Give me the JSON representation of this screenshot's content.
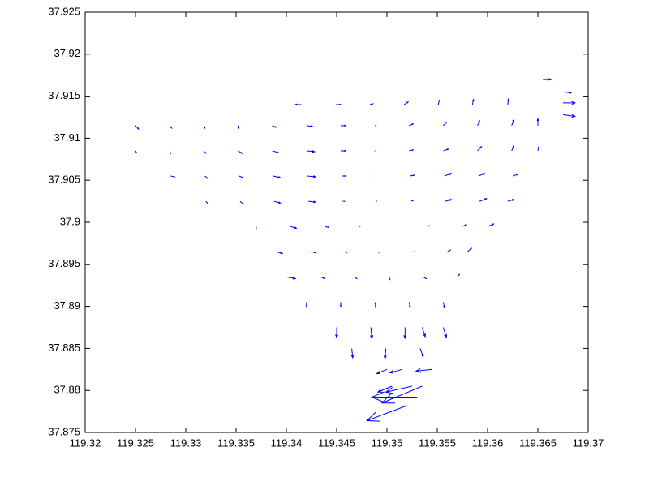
{
  "chart_data": {
    "type": "quiver",
    "color": "#0000ff",
    "xlim": [
      119.32,
      119.37
    ],
    "ylim": [
      37.875,
      37.925
    ],
    "xticks": [
      119.32,
      119.325,
      119.33,
      119.335,
      119.34,
      119.345,
      119.35,
      119.355,
      119.36,
      119.365,
      119.37
    ],
    "yticks": [
      37.875,
      37.88,
      37.885,
      37.89,
      37.895,
      37.9,
      37.905,
      37.91,
      37.915,
      37.92,
      37.925
    ],
    "arrows": [
      {
        "x": 119.3415,
        "y": 37.914,
        "u": -0.0006,
        "v": 0
      },
      {
        "x": 119.3449,
        "y": 37.914,
        "u": 0.0005,
        "v": 0
      },
      {
        "x": 119.3483,
        "y": 37.914,
        "u": 0.0003,
        "v": 0.0001
      },
      {
        "x": 119.3517,
        "y": 37.914,
        "u": 0.0004,
        "v": 0.0003
      },
      {
        "x": 119.3551,
        "y": 37.914,
        "u": 0.0001,
        "v": 0.0005
      },
      {
        "x": 119.3585,
        "y": 37.914,
        "u": 0.0001,
        "v": 0.0006
      },
      {
        "x": 119.362,
        "y": 37.914,
        "u": 0.0001,
        "v": 0.0007
      },
      {
        "x": 119.3655,
        "y": 37.917,
        "u": 0.0008,
        "v": 0
      },
      {
        "x": 119.3675,
        "y": 37.9155,
        "u": 0.0008,
        "v": -0.0001
      },
      {
        "x": 119.3675,
        "y": 37.9142,
        "u": 0.0012,
        "v": 0
      },
      {
        "x": 119.3675,
        "y": 37.9128,
        "u": 0.0012,
        "v": -0.0002
      },
      {
        "x": 119.325,
        "y": 37.9115,
        "u": 0.0003,
        "v": -0.0004
      },
      {
        "x": 119.3284,
        "y": 37.9115,
        "u": 0.0002,
        "v": -0.0003
      },
      {
        "x": 119.3318,
        "y": 37.9115,
        "u": 0.0001,
        "v": -0.0003
      },
      {
        "x": 119.3352,
        "y": 37.9115,
        "u": 0,
        "v": -0.0003
      },
      {
        "x": 119.3386,
        "y": 37.9115,
        "u": 0.0004,
        "v": -0.0002
      },
      {
        "x": 119.342,
        "y": 37.9115,
        "u": 0.0006,
        "v": -0.0001
      },
      {
        "x": 119.3454,
        "y": 37.9115,
        "u": 0.0005,
        "v": 0
      },
      {
        "x": 119.3488,
        "y": 37.9115,
        "u": 0.0001,
        "v": 0
      },
      {
        "x": 119.3522,
        "y": 37.9115,
        "u": 0.0004,
        "v": 0.0002
      },
      {
        "x": 119.3556,
        "y": 37.9115,
        "u": 0.0003,
        "v": 0.0004
      },
      {
        "x": 119.359,
        "y": 37.9115,
        "u": 0.0002,
        "v": 0.0006
      },
      {
        "x": 119.3624,
        "y": 37.9115,
        "u": 0.0002,
        "v": 0.0007
      },
      {
        "x": 119.365,
        "y": 37.9115,
        "u": 0,
        "v": 0.0008
      },
      {
        "x": 119.325,
        "y": 37.9085,
        "u": 0.0001,
        "v": -0.0002
      },
      {
        "x": 119.3284,
        "y": 37.9085,
        "u": 0.0001,
        "v": -0.0003
      },
      {
        "x": 119.3318,
        "y": 37.9085,
        "u": 0.0002,
        "v": -0.0003
      },
      {
        "x": 119.3352,
        "y": 37.9085,
        "u": 0.0004,
        "v": -0.0003
      },
      {
        "x": 119.3386,
        "y": 37.9085,
        "u": 0.0006,
        "v": -0.0002
      },
      {
        "x": 119.342,
        "y": 37.9085,
        "u": 0.0008,
        "v": -0.0001
      },
      {
        "x": 119.3454,
        "y": 37.9085,
        "u": 0.0005,
        "v": 0
      },
      {
        "x": 119.3488,
        "y": 37.9085,
        "u": 0,
        "v": 0
      },
      {
        "x": 119.3522,
        "y": 37.9085,
        "u": 0.0004,
        "v": 0.0001
      },
      {
        "x": 119.3556,
        "y": 37.9085,
        "u": 0.0005,
        "v": 0.0002
      },
      {
        "x": 119.359,
        "y": 37.9085,
        "u": 0.0004,
        "v": 0.0005
      },
      {
        "x": 119.3624,
        "y": 37.9085,
        "u": 0.0002,
        "v": 0.0006
      },
      {
        "x": 119.365,
        "y": 37.9085,
        "u": 0.0001,
        "v": 0.0005
      },
      {
        "x": 119.3285,
        "y": 37.9055,
        "u": 0.0004,
        "v": -0.0001
      },
      {
        "x": 119.3319,
        "y": 37.9055,
        "u": 0.0003,
        "v": -0.0003
      },
      {
        "x": 119.3353,
        "y": 37.9055,
        "u": 0.0004,
        "v": -0.0002
      },
      {
        "x": 119.3387,
        "y": 37.9055,
        "u": 0.0007,
        "v": -0.0002
      },
      {
        "x": 119.3421,
        "y": 37.9055,
        "u": 0.0008,
        "v": -0.0001
      },
      {
        "x": 119.3455,
        "y": 37.9055,
        "u": 0.0004,
        "v": 0
      },
      {
        "x": 119.3489,
        "y": 37.9055,
        "u": 0,
        "v": 0
      },
      {
        "x": 119.3523,
        "y": 37.9055,
        "u": 0.0004,
        "v": 0.0001
      },
      {
        "x": 119.3557,
        "y": 37.9055,
        "u": 0.0007,
        "v": 0.0003
      },
      {
        "x": 119.3591,
        "y": 37.9055,
        "u": 0.0006,
        "v": 0.0003
      },
      {
        "x": 119.3625,
        "y": 37.9055,
        "u": 0.0005,
        "v": 0.0002
      },
      {
        "x": 119.332,
        "y": 37.9025,
        "u": 0.0002,
        "v": -0.0003
      },
      {
        "x": 119.3354,
        "y": 37.9025,
        "u": 0.0003,
        "v": -0.0003
      },
      {
        "x": 119.3388,
        "y": 37.9025,
        "u": 0.0006,
        "v": -0.0002
      },
      {
        "x": 119.3422,
        "y": 37.9025,
        "u": 0.0007,
        "v": -0.0001
      },
      {
        "x": 119.3456,
        "y": 37.9025,
        "u": 0.0002,
        "v": 0
      },
      {
        "x": 119.349,
        "y": 37.9025,
        "u": 0,
        "v": 0
      },
      {
        "x": 119.3524,
        "y": 37.9025,
        "u": 0.0002,
        "v": 0.0001
      },
      {
        "x": 119.3558,
        "y": 37.9025,
        "u": 0.0006,
        "v": 0.0002
      },
      {
        "x": 119.3592,
        "y": 37.9025,
        "u": 0.0007,
        "v": 0.0003
      },
      {
        "x": 119.362,
        "y": 37.9025,
        "u": 0.0006,
        "v": 0.0002
      },
      {
        "x": 119.337,
        "y": 37.8995,
        "u": 0,
        "v": -0.0003
      },
      {
        "x": 119.3404,
        "y": 37.8995,
        "u": 0.0006,
        "v": -0.0002
      },
      {
        "x": 119.3438,
        "y": 37.8995,
        "u": 0.0004,
        "v": -0.0001
      },
      {
        "x": 119.3472,
        "y": 37.8995,
        "u": 0.0001,
        "v": 0
      },
      {
        "x": 119.3506,
        "y": 37.8995,
        "u": 0,
        "v": 0
      },
      {
        "x": 119.354,
        "y": 37.8995,
        "u": 0.0002,
        "v": 0.0001
      },
      {
        "x": 119.3574,
        "y": 37.8995,
        "u": 0.0005,
        "v": 0.0002
      },
      {
        "x": 119.36,
        "y": 37.8995,
        "u": 0.0006,
        "v": 0.0003
      },
      {
        "x": 119.339,
        "y": 37.8965,
        "u": 0.0006,
        "v": -0.0002
      },
      {
        "x": 119.3424,
        "y": 37.8965,
        "u": 0.0005,
        "v": -0.0001
      },
      {
        "x": 119.3458,
        "y": 37.8965,
        "u": 0.0002,
        "v": -0.0001
      },
      {
        "x": 119.3492,
        "y": 37.8965,
        "u": 0,
        "v": -0.0001
      },
      {
        "x": 119.3526,
        "y": 37.8965,
        "u": 0.0002,
        "v": 0
      },
      {
        "x": 119.356,
        "y": 37.8965,
        "u": 0.0003,
        "v": 0.0002
      },
      {
        "x": 119.358,
        "y": 37.8965,
        "u": 0.0004,
        "v": 0.0004
      },
      {
        "x": 119.34,
        "y": 37.8935,
        "u": 0.0009,
        "v": -0.0002
      },
      {
        "x": 119.3434,
        "y": 37.8935,
        "u": 0.0004,
        "v": -0.0002
      },
      {
        "x": 119.3468,
        "y": 37.8935,
        "u": 0.0002,
        "v": -0.0002
      },
      {
        "x": 119.3502,
        "y": 37.8935,
        "u": 0.0001,
        "v": -0.0003
      },
      {
        "x": 119.3536,
        "y": 37.8935,
        "u": 0.0003,
        "v": -0.0002
      },
      {
        "x": 119.357,
        "y": 37.8935,
        "u": 0.0002,
        "v": 0.0003
      },
      {
        "x": 119.342,
        "y": 37.8905,
        "u": 0,
        "v": -0.0005
      },
      {
        "x": 119.3454,
        "y": 37.8905,
        "u": 0,
        "v": -0.0005
      },
      {
        "x": 119.3488,
        "y": 37.8905,
        "u": 0.0001,
        "v": -0.0006
      },
      {
        "x": 119.3522,
        "y": 37.8905,
        "u": 0.0001,
        "v": -0.0006
      },
      {
        "x": 119.3556,
        "y": 37.8905,
        "u": 0.0001,
        "v": -0.0006
      },
      {
        "x": 119.345,
        "y": 37.8875,
        "u": 0,
        "v": -0.0012
      },
      {
        "x": 119.3484,
        "y": 37.8875,
        "u": 0.0001,
        "v": -0.0013
      },
      {
        "x": 119.3518,
        "y": 37.8875,
        "u": 0,
        "v": -0.0013
      },
      {
        "x": 119.3535,
        "y": 37.8875,
        "u": 0.0003,
        "v": -0.0011
      },
      {
        "x": 119.3556,
        "y": 37.8875,
        "u": 0.0003,
        "v": -0.0012
      },
      {
        "x": 119.3465,
        "y": 37.885,
        "u": 0.0001,
        "v": -0.0011
      },
      {
        "x": 119.3499,
        "y": 37.885,
        "u": -0.0001,
        "v": -0.0012
      },
      {
        "x": 119.3533,
        "y": 37.885,
        "u": 0.0003,
        "v": -0.001
      },
      {
        "x": 119.35,
        "y": 37.8825,
        "u": -0.001,
        "v": -0.0005
      },
      {
        "x": 119.3515,
        "y": 37.8825,
        "u": -0.0012,
        "v": -0.0004
      },
      {
        "x": 119.3545,
        "y": 37.8825,
        "u": -0.0016,
        "v": -0.0002
      },
      {
        "x": 119.3505,
        "y": 37.8805,
        "u": -0.0014,
        "v": -0.0007
      },
      {
        "x": 119.3525,
        "y": 37.8805,
        "u": -0.0026,
        "v": -0.0007
      },
      {
        "x": 119.353,
        "y": 37.8792,
        "u": -0.0045,
        "v": 0
      },
      {
        "x": 119.3535,
        "y": 37.8805,
        "u": -0.004,
        "v": -0.002
      },
      {
        "x": 119.352,
        "y": 37.8782,
        "u": -0.004,
        "v": -0.0018
      }
    ]
  }
}
